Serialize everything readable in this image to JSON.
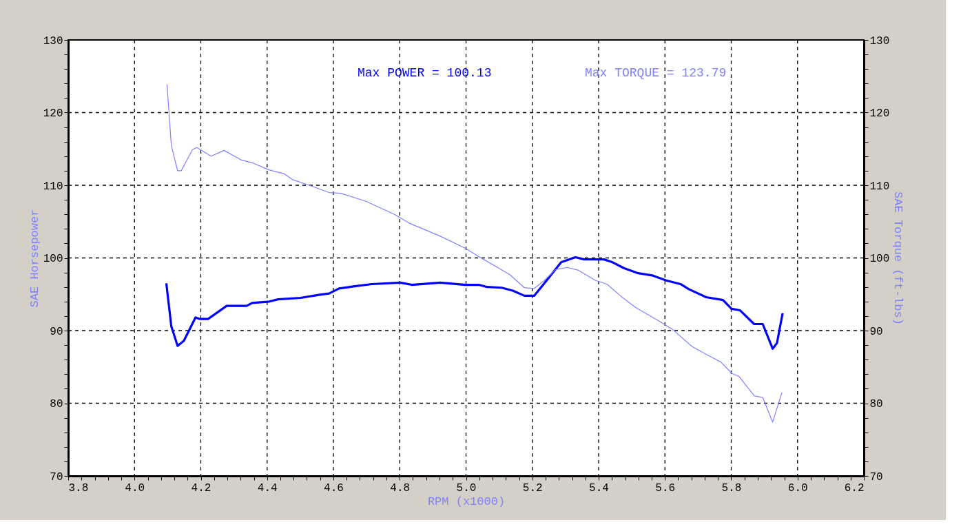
{
  "chart_data": {
    "type": "line",
    "xlabel": "RPM (x1000)",
    "ylabel": "SAE Horsepower",
    "y2label": "SAE Torque (ft-lbs)",
    "annotations": [
      "Max POWER = 100.13",
      "Max TORQUE = 123.79"
    ],
    "series": [
      {
        "color": "#0000ff",
        "x": [
          4.096,
          4.111,
          4.13,
          4.149,
          4.184,
          4.196,
          4.222,
          4.278,
          4.338,
          4.355,
          4.407,
          4.433,
          4.501,
          4.553,
          4.587,
          4.617,
          4.664,
          4.716,
          4.802,
          4.836,
          4.922,
          4.999,
          5.038,
          5.064,
          5.107,
          5.141,
          5.176,
          5.206,
          5.236,
          5.287,
          5.33,
          5.356,
          5.416,
          5.442,
          5.476,
          5.519,
          5.561,
          5.604,
          5.647,
          5.672,
          5.724,
          5.775,
          5.801,
          5.826,
          5.869,
          5.895,
          5.925,
          5.938,
          5.955
        ],
        "values": [
          96.5,
          90.6,
          87.9,
          88.6,
          91.8,
          91.6,
          91.6,
          93.4,
          93.4,
          93.8,
          94.0,
          94.3,
          94.5,
          94.9,
          95.1,
          95.8,
          96.1,
          96.4,
          96.6,
          96.3,
          96.6,
          96.3,
          96.3,
          96.0,
          95.9,
          95.5,
          94.8,
          94.8,
          96.5,
          99.4,
          100.1,
          99.8,
          99.8,
          99.4,
          98.6,
          97.9,
          97.6,
          96.9,
          96.4,
          95.7,
          94.6,
          94.2,
          93.0,
          92.8,
          90.9,
          90.9,
          87.5,
          88.3,
          92.4
        ]
      },
      {
        "color": "#8080ff",
        "axis": "y2",
        "x": [
          4.098,
          4.111,
          4.13,
          4.141,
          4.175,
          4.188,
          4.231,
          4.27,
          4.321,
          4.355,
          4.407,
          4.45,
          4.476,
          4.527,
          4.587,
          4.622,
          4.698,
          4.784,
          4.828,
          4.922,
          4.999,
          5.038,
          5.132,
          5.176,
          5.206,
          5.236,
          5.27,
          5.305,
          5.339,
          5.391,
          5.425,
          5.468,
          5.511,
          5.579,
          5.622,
          5.682,
          5.742,
          5.768,
          5.802,
          5.823,
          5.87,
          5.895,
          5.925,
          5.953
        ],
        "values": [
          123.9,
          115.5,
          112.0,
          112.0,
          114.9,
          115.2,
          114.0,
          114.8,
          113.5,
          113.1,
          112.1,
          111.6,
          110.8,
          110.0,
          109.0,
          108.9,
          107.8,
          106.0,
          104.8,
          103.0,
          101.3,
          100.2,
          97.7,
          95.9,
          95.8,
          96.9,
          98.4,
          98.7,
          98.3,
          96.9,
          96.4,
          94.7,
          93.2,
          91.4,
          90.2,
          87.8,
          86.3,
          85.7,
          84.1,
          83.7,
          81.0,
          80.8,
          77.4,
          81.5
        ]
      }
    ],
    "xlim": [
      3.8,
      6.2
    ],
    "xticks": [
      3.8,
      {
        "value": 3.84,
        "label": null
      },
      {
        "value": 3.88,
        "label": null
      },
      {
        "value": 3.92,
        "label": null
      },
      {
        "value": 3.96,
        "label": null
      },
      {
        "value": 4.0,
        "label": "4.0"
      },
      {
        "value": 4.04,
        "label": null
      },
      {
        "value": 4.08,
        "label": null
      },
      {
        "value": 4.12,
        "label": null
      },
      {
        "value": 4.16,
        "label": null
      },
      4.2,
      {
        "value": 4.24,
        "label": null
      },
      {
        "value": 4.28,
        "label": null
      },
      {
        "value": 4.32,
        "label": null
      },
      {
        "value": 4.36,
        "label": null
      },
      4.4,
      {
        "value": 4.44,
        "label": null
      },
      {
        "value": 4.48,
        "label": null
      },
      {
        "value": 4.52,
        "label": null
      },
      {
        "value": 4.56,
        "label": null
      },
      4.6,
      {
        "value": 4.64,
        "label": null
      },
      {
        "value": 4.68,
        "label": null
      },
      {
        "value": 4.72,
        "label": null
      },
      {
        "value": 4.76,
        "label": null
      },
      4.8,
      {
        "value": 4.84,
        "label": null
      },
      {
        "value": 4.88,
        "label": null
      },
      {
        "value": 4.92,
        "label": null
      },
      {
        "value": 4.96,
        "label": null
      },
      {
        "value": 5.0,
        "label": "5.0"
      },
      {
        "value": 5.04,
        "label": null
      },
      {
        "value": 5.08,
        "label": null
      },
      {
        "value": 5.12,
        "label": null
      },
      {
        "value": 5.16,
        "label": null
      },
      5.2,
      {
        "value": 5.24,
        "label": null
      },
      {
        "value": 5.28,
        "label": null
      },
      {
        "value": 5.32,
        "label": null
      },
      {
        "value": 5.36,
        "label": null
      },
      5.4,
      {
        "value": 5.44,
        "label": null
      },
      {
        "value": 5.48,
        "label": null
      },
      {
        "value": 5.52,
        "label": null
      },
      {
        "value": 5.56,
        "label": null
      },
      5.6,
      {
        "value": 5.64,
        "label": null
      },
      {
        "value": 5.68,
        "label": null
      },
      {
        "value": 5.72,
        "label": null
      },
      {
        "value": 5.76,
        "label": null
      },
      5.8,
      {
        "value": 5.84,
        "label": null
      },
      {
        "value": 5.88,
        "label": null
      },
      {
        "value": 5.92,
        "label": null
      },
      {
        "value": 5.96,
        "label": null
      },
      {
        "value": 6.0,
        "label": "6.0"
      },
      {
        "value": 6.04,
        "label": null
      },
      {
        "value": 6.08,
        "label": null
      },
      {
        "value": 6.12,
        "label": null
      },
      {
        "value": 6.16,
        "label": null
      },
      6.2
    ],
    "ylim": [
      70,
      130
    ],
    "yticks": [
      70,
      {
        "value": 72,
        "label": null
      },
      {
        "value": 74,
        "label": null
      },
      {
        "value": 76,
        "label": null
      },
      {
        "value": 78,
        "label": null
      },
      80,
      {
        "value": 82,
        "label": null
      },
      {
        "value": 84,
        "label": null
      },
      {
        "value": 86,
        "label": null
      },
      {
        "value": 88,
        "label": null
      },
      90,
      {
        "value": 92,
        "label": null
      },
      {
        "value": 94,
        "label": null
      },
      {
        "value": 96,
        "label": null
      },
      {
        "value": 98,
        "label": null
      },
      100,
      {
        "value": 102,
        "label": null
      },
      {
        "value": 104,
        "label": null
      },
      {
        "value": 106,
        "label": null
      },
      {
        "value": 108,
        "label": null
      },
      110,
      {
        "value": 112,
        "label": null
      },
      {
        "value": 114,
        "label": null
      },
      {
        "value": 116,
        "label": null
      },
      {
        "value": 118,
        "label": null
      },
      120,
      {
        "value": 122,
        "label": null
      },
      {
        "value": 124,
        "label": null
      },
      {
        "value": 126,
        "label": null
      },
      {
        "value": 128,
        "label": null
      },
      130
    ],
    "y2lim": [
      70,
      130
    ],
    "y2ticks": [
      70,
      {
        "value": 72,
        "label": null
      },
      {
        "value": 74,
        "label": null
      },
      {
        "value": 76,
        "label": null
      },
      {
        "value": 78,
        "label": null
      },
      80,
      {
        "value": 82,
        "label": null
      },
      {
        "value": 84,
        "label": null
      },
      {
        "value": 86,
        "label": null
      },
      {
        "value": 88,
        "label": null
      },
      90,
      {
        "value": 92,
        "label": null
      },
      {
        "value": 94,
        "label": null
      },
      {
        "value": 96,
        "label": null
      },
      {
        "value": 98,
        "label": null
      },
      100,
      {
        "value": 102,
        "label": null
      },
      {
        "value": 104,
        "label": null
      },
      {
        "value": 106,
        "label": null
      },
      {
        "value": 108,
        "label": null
      },
      110,
      {
        "value": 112,
        "label": null
      },
      {
        "value": 114,
        "label": null
      },
      {
        "value": 116,
        "label": null
      },
      {
        "value": 118,
        "label": null
      },
      120,
      {
        "value": 122,
        "label": null
      },
      {
        "value": 124,
        "label": null
      },
      {
        "value": 126,
        "label": null
      },
      {
        "value": 128,
        "label": null
      },
      130
    ],
    "grid": true,
    "marker": "none",
    "line_style": "solid"
  }
}
